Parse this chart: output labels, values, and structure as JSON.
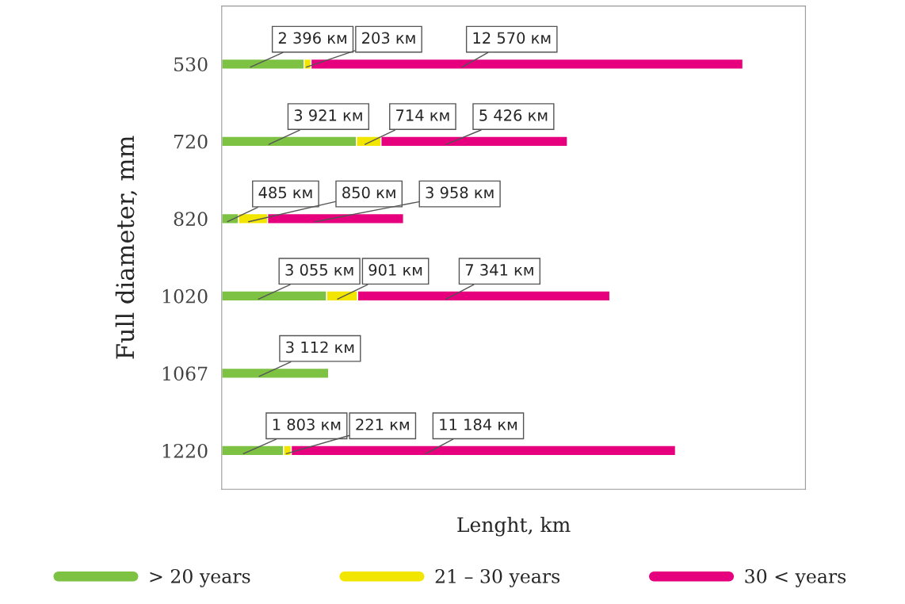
{
  "chart_data": {
    "type": "bar",
    "orientation": "horizontal",
    "stacked": true,
    "categories": [
      "530",
      "720",
      "820",
      "1020",
      "1067",
      "1220"
    ],
    "xlabel": "Lenght, km",
    "ylabel": "Full diameter, mm",
    "series": [
      {
        "name": "> 20 years",
        "color": "#7dc242",
        "values": [
          2396,
          3921,
          485,
          3055,
          3112,
          1803
        ],
        "value_labels": [
          "2 396 км",
          "3 921 км",
          "485 км",
          "3 055 км",
          "3 112 км",
          "1 803 км"
        ]
      },
      {
        "name": "21 – 30 years",
        "color": "#f2e600",
        "values": [
          203,
          714,
          850,
          901,
          null,
          221
        ],
        "value_labels": [
          "203 км",
          "714 км",
          "850 км",
          "901 км",
          null,
          "221 км"
        ]
      },
      {
        "name": "30 < years",
        "color": "#e6007e",
        "values": [
          12570,
          5426,
          3958,
          7341,
          null,
          11184
        ],
        "value_labels": [
          "12 570 км",
          "5 426 км",
          "3 958 км",
          "7 341 км",
          null,
          "11 184 км"
        ]
      }
    ],
    "legend": "bottom",
    "grid": false,
    "tick_labels": "y"
  }
}
